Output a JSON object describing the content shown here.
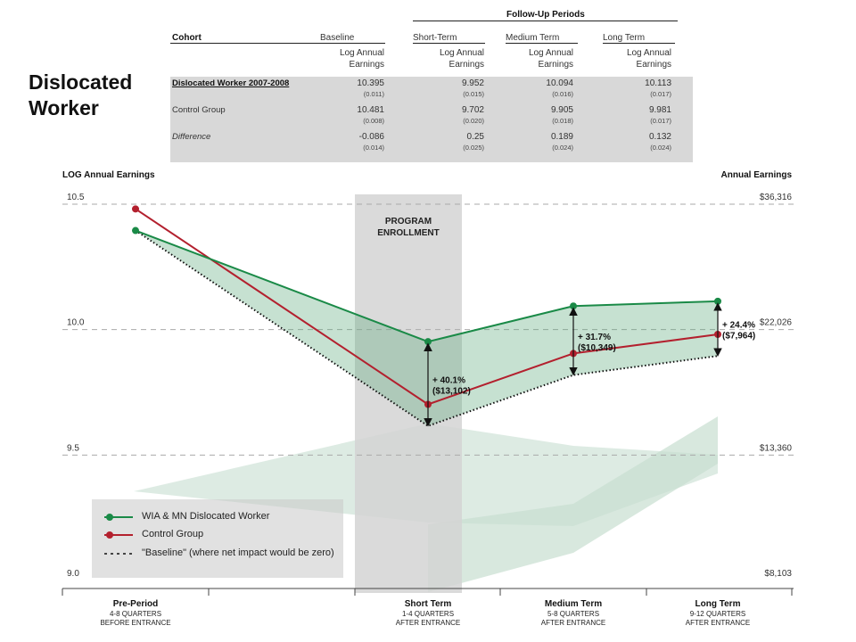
{
  "side_title": "Dislocated Worker",
  "table": {
    "period_group_header": "Follow-Up Periods",
    "headers": [
      "Cohort",
      "Baseline",
      "Short-Term",
      "Medium Term",
      "Long Term"
    ],
    "subheader": "Log Annual Earnings",
    "rows": [
      {
        "label": "Dislocated Worker 2007-2008",
        "style": "bold-underline",
        "values": [
          "10.395",
          "9.952",
          "10.094",
          "10.113"
        ],
        "se": [
          "(0.011)",
          "(0.015)",
          "(0.016)",
          "(0.017)"
        ]
      },
      {
        "label": "Control Group",
        "style": "normal",
        "values": [
          "10.481",
          "9.702",
          "9.905",
          "9.981"
        ],
        "se": [
          "(0.008)",
          "(0.020)",
          "(0.018)",
          "(0.017)"
        ]
      },
      {
        "label": "Difference",
        "style": "italic",
        "values": [
          "-0.086",
          "0.25",
          "0.189",
          "0.132"
        ],
        "se": [
          "(0.014)",
          "(0.025)",
          "(0.024)",
          "(0.024)"
        ]
      }
    ]
  },
  "chart_data": {
    "type": "line",
    "ylabel_left": "LOG Annual Earnings",
    "ylabel_right": "Annual Earnings",
    "ylim": [
      9.0,
      10.5
    ],
    "left_ticks": [
      "10.5",
      "10.0",
      "9.5",
      "9.0"
    ],
    "left_tick_values": [
      10.5,
      10.0,
      9.5,
      9.0
    ],
    "right_ticks": [
      "$36,316",
      "$22,026",
      "$13,360",
      "$8,103"
    ],
    "grid": "dashed horizontal",
    "categories": [
      {
        "title": "Pre-Period",
        "sub1": "4-8 QUARTERS",
        "sub2": "BEFORE ENTRANCE"
      },
      {
        "title": "Short Term",
        "sub1": "1-4 QUARTERS",
        "sub2": "AFTER ENTRANCE"
      },
      {
        "title": "Medium Term",
        "sub1": "5-8 QUARTERS",
        "sub2": "AFTER ENTRANCE"
      },
      {
        "title": "Long Term",
        "sub1": "9-12 QUARTERS",
        "sub2": "AFTER ENTRANCE"
      }
    ],
    "series": [
      {
        "name": "WIA & MN Dislocated Worker",
        "color": "#1a8a47",
        "values": [
          10.395,
          9.952,
          10.094,
          10.113
        ]
      },
      {
        "name": "Control Group",
        "color": "#b3202e",
        "values": [
          10.481,
          9.702,
          9.905,
          9.981
        ]
      },
      {
        "name": "\"Baseline\" (where net impact would be zero)",
        "color": "#111111",
        "style": "dotted",
        "values": [
          10.395,
          9.616,
          9.819,
          9.895
        ]
      }
    ],
    "shaded_band": "Program Enrollment",
    "band_label_lines": [
      "PROGRAM",
      "ENROLLMENT"
    ],
    "annotations": [
      {
        "at": "Short Term",
        "line1": "+ 40.1%",
        "line2": "($13,102)"
      },
      {
        "at": "Medium Term",
        "line1": "+ 31.7%",
        "line2": "($10,349)"
      },
      {
        "at": "Long Term",
        "line1": "+ 24.4%",
        "line2": "($7,964)"
      }
    ],
    "colors": {
      "treatment": "#1a8a47",
      "control": "#b3202e",
      "fill": "#5daa7c",
      "band": "#d3d3d3"
    }
  }
}
